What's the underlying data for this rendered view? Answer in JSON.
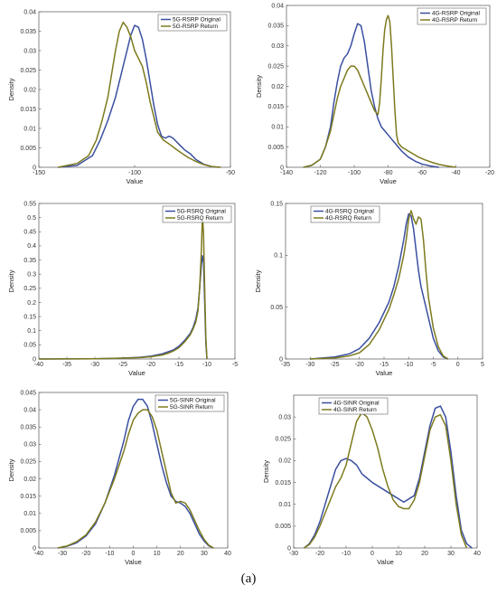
{
  "caption": "(a)",
  "colors": {
    "original": "#3a4fa0",
    "return": "#7d7a1e",
    "axis": "#555555"
  },
  "chart_data": [
    {
      "type": "line",
      "xlabel": "Value",
      "ylabel": "Density",
      "xlim": [
        -150,
        -50
      ],
      "ylim": [
        0,
        0.04
      ],
      "xticks": [
        -150,
        -100,
        -50
      ],
      "yticks": [
        0,
        0.005,
        0.01,
        0.015,
        0.02,
        0.025,
        0.03,
        0.035,
        0.04
      ],
      "legend": "top-right",
      "series": [
        {
          "name": "5G-RSRP Original",
          "x": [
            -140,
            -130,
            -122,
            -118,
            -114,
            -110,
            -107,
            -104,
            -102,
            -100,
            -98,
            -96,
            -94,
            -92,
            -90,
            -88,
            -86,
            -84,
            -82,
            -80,
            -77,
            -74,
            -71,
            -68,
            -64,
            -60,
            -56
          ],
          "y": [
            0,
            0.0005,
            0.003,
            0.007,
            0.012,
            0.018,
            0.024,
            0.03,
            0.034,
            0.0365,
            0.036,
            0.033,
            0.028,
            0.022,
            0.016,
            0.011,
            0.008,
            0.0075,
            0.008,
            0.0075,
            0.006,
            0.0045,
            0.0035,
            0.002,
            0.0008,
            0.0002,
            0
          ]
        },
        {
          "name": "5G-RSRP Return",
          "x": [
            -140,
            -130,
            -124,
            -120,
            -117,
            -114,
            -112,
            -110,
            -108,
            -106,
            -104,
            -102,
            -100,
            -98,
            -96,
            -94,
            -92,
            -90,
            -88,
            -85,
            -82,
            -78,
            -75,
            -72,
            -68,
            -64,
            -60,
            -55
          ],
          "y": [
            0,
            0.001,
            0.003,
            0.007,
            0.012,
            0.018,
            0.024,
            0.03,
            0.035,
            0.0373,
            0.036,
            0.0335,
            0.03,
            0.028,
            0.026,
            0.022,
            0.017,
            0.013,
            0.009,
            0.007,
            0.006,
            0.0045,
            0.0035,
            0.0025,
            0.0015,
            0.0007,
            0.0002,
            0
          ]
        }
      ]
    },
    {
      "type": "line",
      "xlabel": "Value",
      "ylabel": "Density",
      "xlim": [
        -140,
        -20
      ],
      "ylim": [
        0,
        0.04
      ],
      "xticks": [
        -140,
        -120,
        -100,
        -80,
        -60,
        -40,
        -20
      ],
      "yticks": [
        0,
        0.005,
        0.01,
        0.015,
        0.02,
        0.025,
        0.03,
        0.035,
        0.04
      ],
      "legend": "top-right",
      "series": [
        {
          "name": "4G-RSRP Original",
          "x": [
            -130,
            -125,
            -120,
            -117,
            -114,
            -112,
            -110,
            -108,
            -106,
            -104,
            -102,
            -100,
            -98,
            -96,
            -94,
            -92,
            -90,
            -88,
            -86,
            -84,
            -82,
            -80,
            -78,
            -76,
            -74,
            -72,
            -68,
            -64,
            -60,
            -55,
            -50
          ],
          "y": [
            0,
            0.0005,
            0.002,
            0.005,
            0.01,
            0.016,
            0.021,
            0.025,
            0.027,
            0.028,
            0.03,
            0.033,
            0.0355,
            0.035,
            0.031,
            0.025,
            0.019,
            0.015,
            0.012,
            0.01,
            0.009,
            0.008,
            0.007,
            0.006,
            0.005,
            0.004,
            0.0025,
            0.0015,
            0.0008,
            0.0003,
            0
          ]
        },
        {
          "name": "4G-RSRP Return",
          "x": [
            -130,
            -125,
            -120,
            -117,
            -114,
            -112,
            -110,
            -108,
            -106,
            -104,
            -102,
            -100,
            -98,
            -96,
            -94,
            -92,
            -90,
            -88,
            -86,
            -85,
            -84,
            -83,
            -82,
            -81,
            -80,
            -79,
            -78,
            -77,
            -76,
            -75,
            -74,
            -72,
            -70,
            -66,
            -62,
            -58,
            -54,
            -50,
            -45,
            -40
          ],
          "y": [
            0,
            0.0005,
            0.002,
            0.005,
            0.009,
            0.013,
            0.017,
            0.02,
            0.022,
            0.024,
            0.025,
            0.025,
            0.024,
            0.022,
            0.02,
            0.018,
            0.016,
            0.014,
            0.013,
            0.016,
            0.022,
            0.029,
            0.034,
            0.0365,
            0.0375,
            0.036,
            0.03,
            0.022,
            0.014,
            0.008,
            0.006,
            0.005,
            0.0045,
            0.0035,
            0.0025,
            0.0018,
            0.0012,
            0.0007,
            0.0003,
            0
          ]
        }
      ]
    },
    {
      "type": "line",
      "xlabel": "Value",
      "ylabel": "Density",
      "xlim": [
        -40,
        -5
      ],
      "ylim": [
        0,
        0.55
      ],
      "xticks": [
        -40,
        -35,
        -30,
        -25,
        -20,
        -15,
        -10,
        -5
      ],
      "yticks": [
        0,
        0.05,
        0.1,
        0.15,
        0.2,
        0.25,
        0.3,
        0.35,
        0.4,
        0.45,
        0.5,
        0.55
      ],
      "legend": "top-right",
      "series": [
        {
          "name": "5G-RSRQ Original",
          "x": [
            -40,
            -30,
            -25,
            -22,
            -20,
            -18,
            -17,
            -16,
            -15,
            -14,
            -13,
            -12.5,
            -12,
            -11.6,
            -11.3,
            -11,
            -10.8,
            -10.6,
            -10.4,
            -10.2,
            -10
          ],
          "y": [
            0,
            0.001,
            0.003,
            0.006,
            0.01,
            0.018,
            0.025,
            0.032,
            0.045,
            0.065,
            0.09,
            0.11,
            0.14,
            0.18,
            0.25,
            0.33,
            0.365,
            0.34,
            0.2,
            0.06,
            0
          ]
        },
        {
          "name": "5G-RSRQ Return",
          "x": [
            -40,
            -30,
            -25,
            -22,
            -20,
            -18,
            -17,
            -16,
            -15,
            -14,
            -13,
            -12.5,
            -12,
            -11.6,
            -11.3,
            -11,
            -10.8,
            -10.6,
            -10.4,
            -10.2,
            -10
          ],
          "y": [
            0,
            0.001,
            0.003,
            0.005,
            0.008,
            0.014,
            0.02,
            0.028,
            0.04,
            0.06,
            0.085,
            0.105,
            0.13,
            0.17,
            0.25,
            0.38,
            0.51,
            0.44,
            0.25,
            0.08,
            0
          ]
        }
      ]
    },
    {
      "type": "line",
      "xlabel": "Value",
      "ylabel": "Density",
      "xlim": [
        -35,
        5
      ],
      "ylim": [
        0,
        0.15
      ],
      "xticks": [
        -35,
        -30,
        -25,
        -20,
        -15,
        -10,
        -5,
        0,
        5
      ],
      "yticks": [
        0,
        0.05,
        0.1,
        0.15
      ],
      "legend": "top-left",
      "series": [
        {
          "name": "4G-RSRQ Original",
          "x": [
            -30,
            -25,
            -22,
            -20,
            -18,
            -16,
            -14,
            -13,
            -12,
            -11,
            -10.5,
            -10,
            -9.5,
            -9,
            -8.5,
            -8,
            -7.5,
            -7,
            -6.5,
            -6,
            -5,
            -4,
            -3,
            -2
          ],
          "y": [
            0,
            0.002,
            0.005,
            0.01,
            0.02,
            0.035,
            0.055,
            0.07,
            0.09,
            0.115,
            0.13,
            0.14,
            0.138,
            0.125,
            0.105,
            0.085,
            0.07,
            0.06,
            0.05,
            0.04,
            0.02,
            0.008,
            0.002,
            0
          ]
        },
        {
          "name": "4G-RSRQ Return",
          "x": [
            -30,
            -25,
            -22,
            -20,
            -18,
            -16,
            -14,
            -13,
            -12,
            -11,
            -10.5,
            -10,
            -9.5,
            -9,
            -8.5,
            -8,
            -7.5,
            -7,
            -6.5,
            -6,
            -5,
            -4,
            -3,
            -2
          ],
          "y": [
            0,
            0.001,
            0.003,
            0.006,
            0.014,
            0.028,
            0.048,
            0.062,
            0.078,
            0.1,
            0.115,
            0.135,
            0.143,
            0.135,
            0.13,
            0.137,
            0.135,
            0.115,
            0.085,
            0.06,
            0.03,
            0.012,
            0.003,
            0
          ]
        }
      ]
    },
    {
      "type": "line",
      "xlabel": "Value",
      "ylabel": "Density",
      "xlim": [
        -40,
        40
      ],
      "ylim": [
        0,
        0.045
      ],
      "xticks": [
        -40,
        -30,
        -20,
        -10,
        0,
        10,
        20,
        30,
        40
      ],
      "yticks": [
        0,
        0.005,
        0.01,
        0.015,
        0.02,
        0.025,
        0.03,
        0.035,
        0.04,
        0.045
      ],
      "legend": "top-right",
      "series": [
        {
          "name": "5G-SINR Original",
          "x": [
            -32,
            -28,
            -24,
            -20,
            -16,
            -12,
            -8,
            -4,
            -2,
            0,
            2,
            4,
            6,
            8,
            10,
            12,
            14,
            16,
            18,
            20,
            22,
            24,
            26,
            28,
            30,
            32,
            34
          ],
          "y": [
            0,
            0.0005,
            0.0015,
            0.0035,
            0.007,
            0.013,
            0.021,
            0.031,
            0.037,
            0.041,
            0.043,
            0.043,
            0.041,
            0.036,
            0.03,
            0.024,
            0.019,
            0.015,
            0.0135,
            0.013,
            0.012,
            0.01,
            0.007,
            0.004,
            0.002,
            0.0006,
            0
          ]
        },
        {
          "name": "5G-SINR Return",
          "x": [
            -32,
            -28,
            -24,
            -20,
            -16,
            -12,
            -8,
            -4,
            -2,
            0,
            2,
            4,
            6,
            8,
            10,
            12,
            14,
            16,
            18,
            20,
            22,
            24,
            26,
            28,
            30,
            32,
            34
          ],
          "y": [
            0,
            0.0006,
            0.0018,
            0.0038,
            0.0075,
            0.013,
            0.02,
            0.028,
            0.033,
            0.037,
            0.039,
            0.04,
            0.04,
            0.038,
            0.034,
            0.028,
            0.022,
            0.016,
            0.013,
            0.0135,
            0.013,
            0.011,
            0.008,
            0.005,
            0.0025,
            0.0008,
            0
          ]
        }
      ]
    },
    {
      "type": "line",
      "xlabel": "Value",
      "ylabel": "Density",
      "xlim": [
        -30,
        40
      ],
      "ylim": [
        0,
        0.035
      ],
      "xticks": [
        -30,
        -20,
        -10,
        0,
        10,
        20,
        30,
        40
      ],
      "yticks": [
        0,
        0.005,
        0.01,
        0.015,
        0.02,
        0.025,
        0.03
      ],
      "legend": "top-left",
      "series": [
        {
          "name": "4G-SINR Original",
          "x": [
            -26,
            -24,
            -22,
            -20,
            -18,
            -16,
            -14,
            -12,
            -10,
            -8,
            -6,
            -4,
            -2,
            0,
            4,
            8,
            12,
            16,
            18,
            20,
            22,
            24,
            26,
            28,
            30,
            32,
            34,
            36,
            38
          ],
          "y": [
            0,
            0.001,
            0.003,
            0.006,
            0.01,
            0.014,
            0.018,
            0.02,
            0.0205,
            0.02,
            0.019,
            0.017,
            0.016,
            0.015,
            0.0135,
            0.012,
            0.0105,
            0.012,
            0.016,
            0.022,
            0.028,
            0.032,
            0.0325,
            0.03,
            0.022,
            0.012,
            0.004,
            0.001,
            0
          ]
        },
        {
          "name": "4G-SINR Return",
          "x": [
            -26,
            -24,
            -22,
            -20,
            -18,
            -16,
            -14,
            -12,
            -10,
            -8,
            -6,
            -4,
            -2,
            0,
            2,
            4,
            6,
            8,
            10,
            12,
            14,
            16,
            18,
            20,
            22,
            24,
            26,
            28,
            30,
            32,
            34,
            36
          ],
          "y": [
            0,
            0.0008,
            0.0025,
            0.005,
            0.008,
            0.011,
            0.014,
            0.016,
            0.019,
            0.024,
            0.029,
            0.031,
            0.03,
            0.027,
            0.023,
            0.018,
            0.014,
            0.011,
            0.0095,
            0.009,
            0.009,
            0.011,
            0.015,
            0.021,
            0.027,
            0.03,
            0.0305,
            0.028,
            0.02,
            0.01,
            0.003,
            0
          ]
        }
      ]
    }
  ]
}
